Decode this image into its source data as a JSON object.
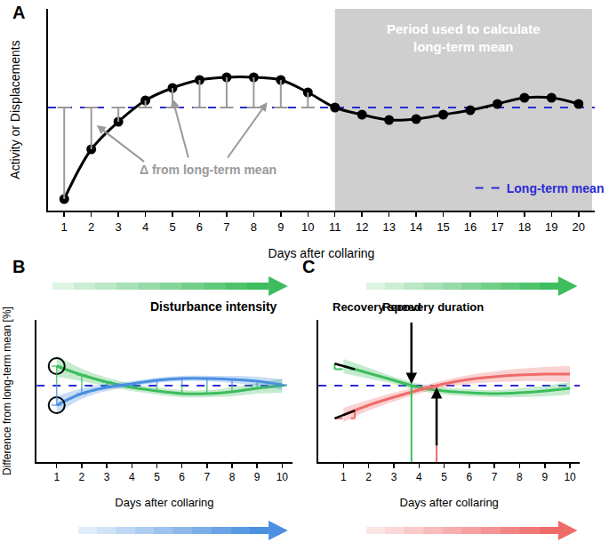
{
  "chart_data": [
    {
      "type": "line",
      "title": "A",
      "xlabel": "Days after collaring",
      "ylabel": "Activity or Displacements",
      "x": [
        1,
        2,
        3,
        4,
        5,
        6,
        7,
        8,
        9,
        10,
        11,
        12,
        13,
        14,
        15,
        16,
        17,
        18,
        19,
        20
      ],
      "values": [
        -103,
        -47,
        -16,
        8,
        22,
        31,
        34,
        34,
        31,
        17,
        0,
        -8,
        -14,
        -13,
        -8,
        -3,
        4,
        11,
        11,
        4
      ],
      "color": "#000000",
      "marker": "circle",
      "long_term_mean": {
        "name": "Long-term mean",
        "value": 0,
        "color": "#2b2bd6",
        "line_style": "dashed"
      },
      "shaded_period": {
        "text": [
          "Period used to calculate",
          "long-term mean"
        ],
        "range": [
          11,
          20.5
        ]
      },
      "annotations": [
        "Δ from long-term mean"
      ],
      "xlim": [
        0.4,
        20.6
      ],
      "xticks": [
        1,
        2,
        3,
        4,
        5,
        6,
        7,
        8,
        9,
        10,
        11,
        12,
        13,
        14,
        15,
        16,
        17,
        18,
        19,
        20
      ],
      "ylim": [
        -116,
        111
      ],
      "grid": false,
      "tick_labels": "x",
      "legend": "bottom right"
    },
    {
      "type": "line",
      "title": "B",
      "xlabel": "Days after collaring",
      "ylabel": "Difference from long-term mean [%]",
      "x": [
        1,
        2,
        3,
        4,
        5,
        6,
        7,
        8,
        9,
        10
      ],
      "series": [
        {
          "color": "#3dbd5d",
          "values": [
            22,
            12,
            4,
            -2,
            -6,
            -9,
            -9,
            -7,
            -3,
            0
          ],
          "lower": [
            10,
            5,
            -1,
            -6,
            -10,
            -13,
            -13,
            -12,
            -9,
            -8
          ],
          "upper": [
            34,
            19,
            9,
            2,
            -2,
            -5,
            -5,
            -2,
            3,
            8
          ]
        },
        {
          "color": "#4a8fe0",
          "values": [
            -22,
            -9,
            -2,
            2,
            6,
            8,
            8,
            7,
            5,
            1
          ],
          "lower": [
            -32,
            -15,
            -6,
            -1,
            3,
            5,
            5,
            3,
            0,
            -5
          ],
          "upper": [
            -12,
            -3,
            2,
            5,
            9,
            11,
            11,
            11,
            10,
            7
          ]
        }
      ],
      "long_term_mean": {
        "value": 0,
        "color": "#2b2bd6",
        "line_style": "dashed"
      },
      "annotations": [
        "Disturbance intensity"
      ],
      "xlim": [
        0.2,
        10.4
      ],
      "xticks": [
        1,
        2,
        3,
        4,
        5,
        6,
        7,
        8,
        9,
        10
      ],
      "ylim": [
        -86,
        74
      ],
      "grid": false,
      "tick_labels": "x"
    },
    {
      "type": "line",
      "title": "C",
      "xlabel": "Days after collaring",
      "x": [
        1,
        2,
        3,
        4,
        5,
        6,
        7,
        8,
        9,
        10
      ],
      "series": [
        {
          "color": "#3dbd5d",
          "values": [
            22,
            14,
            6,
            -2,
            -6,
            -8,
            -9,
            -8,
            -6,
            -3
          ],
          "lower": [
            14,
            8,
            2,
            -6,
            -10,
            -12,
            -13,
            -13,
            -12,
            -10
          ],
          "upper": [
            30,
            20,
            10,
            2,
            -2,
            -4,
            -5,
            -3,
            0,
            4
          ],
          "recovery_day": 3.7
        },
        {
          "color": "#f06a6a",
          "values": [
            -33,
            -22,
            -13,
            -5,
            2,
            7,
            10,
            12,
            13,
            13
          ],
          "lower": [
            -41,
            -28,
            -18,
            -9,
            -2,
            2,
            4,
            5,
            5,
            4
          ],
          "upper": [
            -25,
            -16,
            -8,
            -1,
            6,
            12,
            16,
            19,
            21,
            22
          ],
          "recovery_day": 4.7
        }
      ],
      "long_term_mean": {
        "value": 0,
        "color": "#2b2bd6",
        "line_style": "dashed"
      },
      "annotations": [
        "Recovery speed",
        "Recovery duration"
      ],
      "xlim": [
        0,
        10.4
      ],
      "xticks": [
        1,
        2,
        3,
        4,
        5,
        6,
        7,
        8,
        9,
        10
      ],
      "ylim": [
        -86,
        74
      ],
      "grid": false,
      "tick_labels": "x"
    }
  ]
}
